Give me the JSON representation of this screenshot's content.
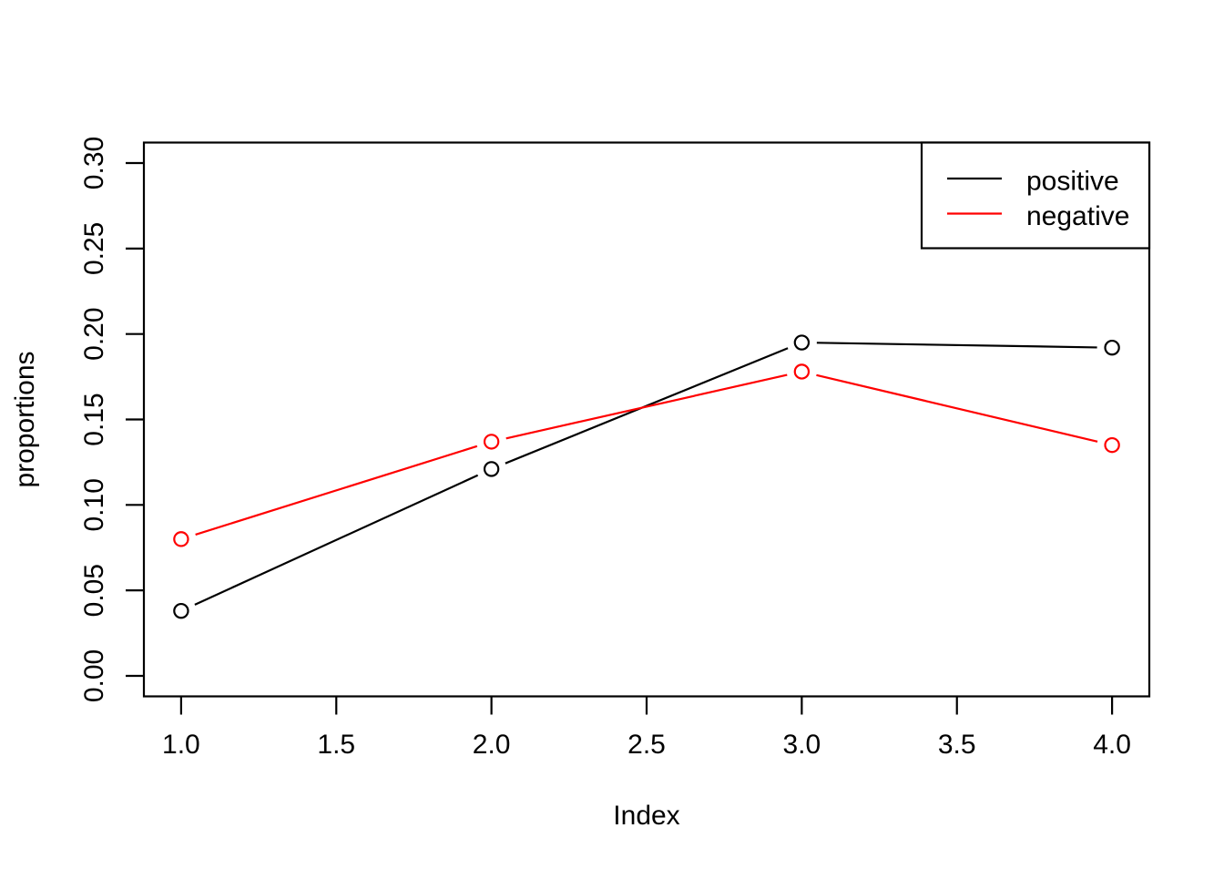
{
  "figure": {
    "background": "#ffffff",
    "plot_background": "#ffffff",
    "border_color": "#000000"
  },
  "chart_data": {
    "type": "line",
    "x": [
      1,
      2,
      3,
      4
    ],
    "series": [
      {
        "name": "positive",
        "color": "#000000",
        "values": [
          0.038,
          0.121,
          0.195,
          0.192
        ]
      },
      {
        "name": "negative",
        "color": "#ff0000",
        "values": [
          0.08,
          0.137,
          0.178,
          0.135
        ]
      }
    ],
    "title": "",
    "xlabel": "Index",
    "ylabel": "proportions",
    "xlim": [
      1,
      4
    ],
    "ylim": [
      0,
      0.3
    ],
    "xticks": [
      "1.0",
      "1.5",
      "2.0",
      "2.5",
      "3.0",
      "3.5",
      "4.0"
    ],
    "yticks": [
      "0.00",
      "0.05",
      "0.10",
      "0.15",
      "0.20",
      "0.25",
      "0.30"
    ],
    "grid": false,
    "legend_position": "topright",
    "marker": "open-circle",
    "line_style": "points-with-gaps"
  }
}
